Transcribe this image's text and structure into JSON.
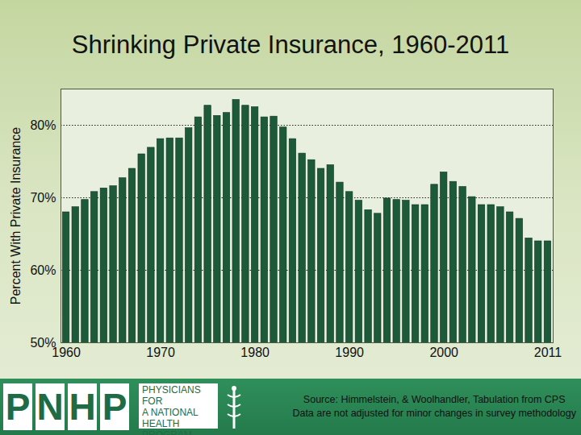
{
  "chart_data": {
    "type": "bar",
    "title": "Shrinking Private Insurance, 1960-2011",
    "ylabel": "Percent With Private Insurance",
    "categories": [
      "1960",
      null,
      null,
      null,
      null,
      null,
      null,
      null,
      null,
      null,
      "1970",
      null,
      null,
      null,
      null,
      null,
      null,
      null,
      null,
      null,
      "1980",
      null,
      null,
      null,
      null,
      null,
      null,
      null,
      null,
      null,
      "1990",
      null,
      null,
      null,
      null,
      null,
      null,
      null,
      null,
      null,
      "2000",
      null,
      null,
      null,
      null,
      null,
      null,
      null,
      null,
      null,
      null,
      "2011"
    ],
    "values": [
      68.0,
      68.7,
      69.7,
      70.8,
      71.3,
      71.6,
      72.7,
      74.0,
      76.0,
      76.9,
      78.1,
      78.2,
      78.2,
      79.6,
      81.1,
      82.7,
      81.3,
      81.7,
      83.5,
      82.7,
      82.5,
      81.1,
      81.2,
      79.7,
      78.1,
      76.1,
      75.2,
      74.0,
      74.5,
      72.1,
      70.8,
      69.6,
      68.3,
      67.8,
      69.9,
      69.7,
      69.6,
      69.0,
      69.0,
      71.8,
      73.5,
      72.2,
      71.5,
      70.1,
      69.0,
      69.0,
      68.7,
      68.0,
      67.1,
      64.4,
      64.0,
      64.0
    ],
    "color": "#1d5a3a",
    "ylim": [
      50,
      85
    ],
    "yticks": [
      {
        "value": 50,
        "label": "50%"
      },
      {
        "value": 60,
        "label": "60%"
      },
      {
        "value": 70,
        "label": "70%"
      },
      {
        "value": 80,
        "label": "80%"
      }
    ],
    "grid": true,
    "logo_text": [
      "P",
      "N",
      "H",
      "P"
    ],
    "logo_caption": [
      "PHYSICIANS FOR",
      "A NATIONAL",
      "HEALTH",
      "PROGRAM"
    ],
    "source": [
      "Source: Himmelstein, & Woolhandler, Tabulation from CPS",
      "Data are not adjusted for minor changes in survey methodology"
    ]
  }
}
